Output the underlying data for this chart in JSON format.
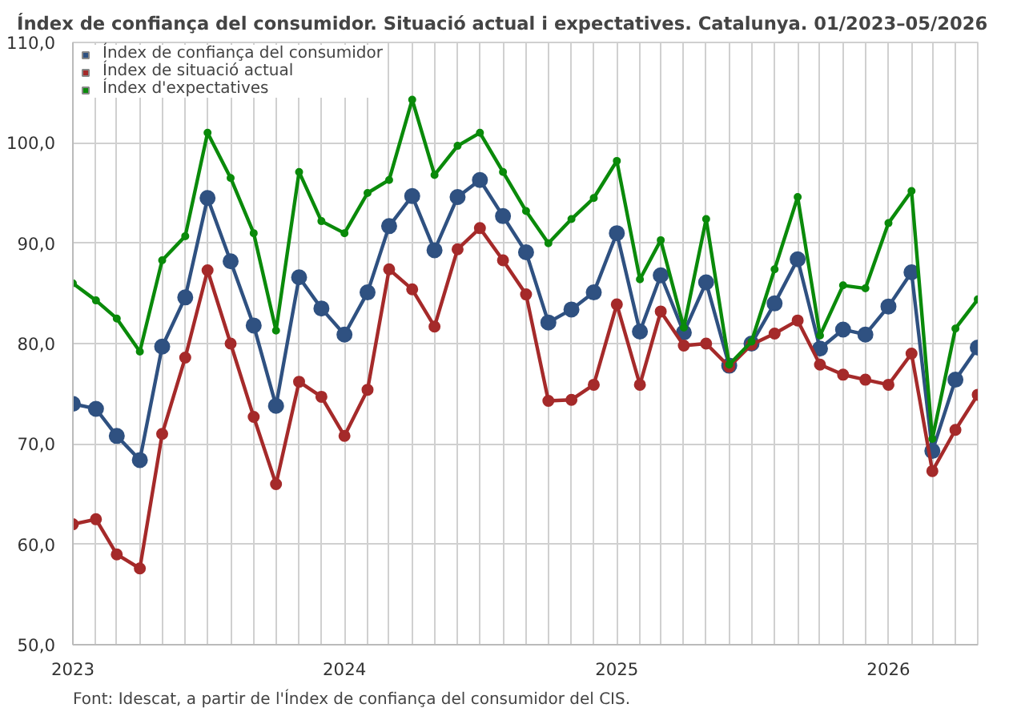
{
  "chart_data": {
    "type": "line",
    "title": "Índex de confiança del consumidor. Situació actual i expectatives. Catalunya. 01/2023–05/2026",
    "x": [
      "2023-01",
      "2023-02",
      "2023-03",
      "2023-04",
      "2023-05",
      "2023-06",
      "2023-07",
      "2023-08",
      "2023-09",
      "2023-10",
      "2023-11",
      "2023-12",
      "2024-01",
      "2024-02",
      "2024-03",
      "2024-04",
      "2024-05",
      "2024-06",
      "2024-07",
      "2024-08",
      "2024-09",
      "2024-10",
      "2024-11",
      "2024-12",
      "2025-01",
      "2025-02",
      "2025-03",
      "2025-04",
      "2025-05",
      "2025-06",
      "2025-07",
      "2025-08",
      "2025-09",
      "2025-10",
      "2025-11",
      "2025-12",
      "2026-01",
      "2026-02",
      "2026-03",
      "2026-04",
      "2026-05"
    ],
    "series": [
      {
        "name": "Índex de confiança del consumidor",
        "color": "#2f5181",
        "values": [
          74.0,
          73.5,
          70.8,
          68.4,
          79.7,
          84.6,
          94.5,
          88.2,
          81.8,
          73.8,
          86.6,
          83.5,
          80.9,
          85.1,
          91.7,
          94.7,
          89.3,
          94.6,
          96.3,
          92.7,
          89.1,
          82.1,
          83.4,
          85.1,
          91.0,
          81.2,
          86.8,
          81.1,
          86.1,
          77.8,
          80.0,
          84.0,
          88.4,
          79.5,
          81.4,
          80.9,
          83.7,
          87.1,
          69.3,
          76.4,
          79.6
        ]
      },
      {
        "name": "Índex de situació actual",
        "color": "#a52a2a",
        "values": [
          62.0,
          62.5,
          59.0,
          57.6,
          71.0,
          78.6,
          87.3,
          80.0,
          72.7,
          66.0,
          76.2,
          74.7,
          70.8,
          75.4,
          87.4,
          85.4,
          81.7,
          89.4,
          91.5,
          88.3,
          84.9,
          74.3,
          74.4,
          75.9,
          83.9,
          75.9,
          83.2,
          79.8,
          80.0,
          77.7,
          79.9,
          81.0,
          82.3,
          77.9,
          76.9,
          76.4,
          75.9,
          79.0,
          67.3,
          71.4,
          74.9
        ]
      },
      {
        "name": "Índex d'expectatives",
        "color": "#0a8a0a",
        "values": [
          86.0,
          84.3,
          82.5,
          79.2,
          88.3,
          90.7,
          101.0,
          96.5,
          91.0,
          81.3,
          97.1,
          92.2,
          91.0,
          95.0,
          96.3,
          104.3,
          96.8,
          99.7,
          101.0,
          97.1,
          93.2,
          90.0,
          92.4,
          94.5,
          98.2,
          86.4,
          90.3,
          81.6,
          92.4,
          77.9,
          80.2,
          87.4,
          94.6,
          80.8,
          85.8,
          85.5,
          92.0,
          95.2,
          70.5,
          81.5,
          84.4
        ]
      }
    ],
    "xlim": [
      "2023-01",
      "2026-05"
    ],
    "xticks": [
      {
        "value": "2023-01",
        "label": "2023"
      },
      {
        "value": "2023-02",
        "label": null
      },
      {
        "value": "2023-03",
        "label": null
      },
      {
        "value": "2023-04",
        "label": null
      },
      {
        "value": "2023-05",
        "label": null
      },
      {
        "value": "2023-06",
        "label": null
      },
      {
        "value": "2023-07",
        "label": null
      },
      {
        "value": "2023-08",
        "label": null
      },
      {
        "value": "2023-09",
        "label": null
      },
      {
        "value": "2023-10",
        "label": null
      },
      {
        "value": "2023-11",
        "label": null
      },
      {
        "value": "2023-12",
        "label": null
      },
      {
        "value": "2024-01",
        "label": "2024"
      },
      {
        "value": "2024-02",
        "label": null
      },
      {
        "value": "2024-03",
        "label": null
      },
      {
        "value": "2024-04",
        "label": null
      },
      {
        "value": "2024-05",
        "label": null
      },
      {
        "value": "2024-06",
        "label": null
      },
      {
        "value": "2024-07",
        "label": null
      },
      {
        "value": "2024-08",
        "label": null
      },
      {
        "value": "2024-09",
        "label": null
      },
      {
        "value": "2024-10",
        "label": null
      },
      {
        "value": "2024-11",
        "label": null
      },
      {
        "value": "2024-12",
        "label": null
      },
      {
        "value": "2025-01",
        "label": "2025"
      },
      {
        "value": "2025-02",
        "label": null
      },
      {
        "value": "2025-03",
        "label": null
      },
      {
        "value": "2025-04",
        "label": null
      },
      {
        "value": "2025-05",
        "label": null
      },
      {
        "value": "2025-06",
        "label": null
      },
      {
        "value": "2025-07",
        "label": null
      },
      {
        "value": "2025-08",
        "label": null
      },
      {
        "value": "2025-09",
        "label": null
      },
      {
        "value": "2025-10",
        "label": null
      },
      {
        "value": "2025-11",
        "label": null
      },
      {
        "value": "2025-12",
        "label": null
      },
      {
        "value": "2026-01",
        "label": "2026"
      },
      {
        "value": "2026-02",
        "label": null
      },
      {
        "value": "2026-03",
        "label": null
      },
      {
        "value": "2026-04",
        "label": null
      },
      {
        "value": "2026-05",
        "label": null
      }
    ],
    "ylim": [
      50,
      110
    ],
    "yticks": [
      {
        "value": 50,
        "label": "50,0"
      },
      {
        "value": 60,
        "label": "60,0"
      },
      {
        "value": 70,
        "label": "70,0"
      },
      {
        "value": 80,
        "label": "80,0"
      },
      {
        "value": 90,
        "label": "90,0"
      },
      {
        "value": 100,
        "label": "100,0"
      },
      {
        "value": 110,
        "label": "110,0"
      }
    ],
    "grid": true,
    "legend": "top left",
    "marker": "circle",
    "line_style": "solid",
    "annotations": [
      "Font: Idescat, a partir de l'Índex de confiança del consumidor del CIS."
    ]
  }
}
